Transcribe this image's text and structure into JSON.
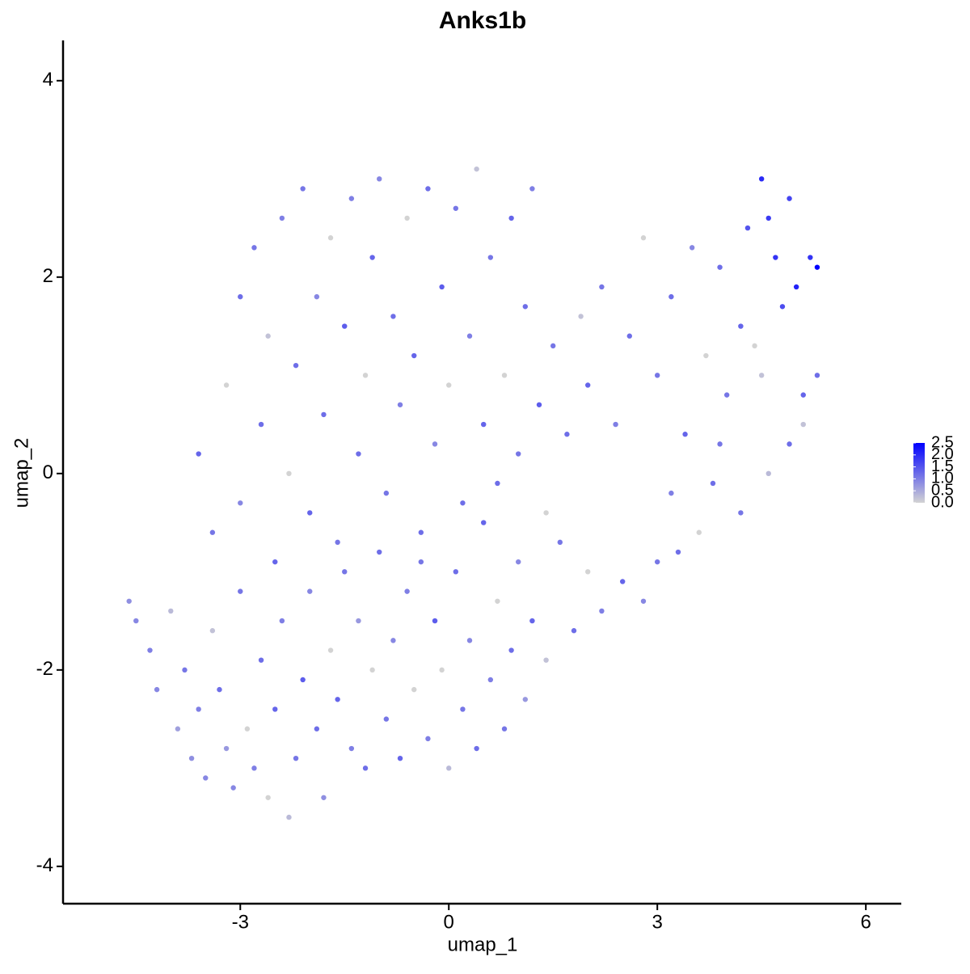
{
  "chart_data": {
    "type": "scatter",
    "title": "Anks1b",
    "x_label": "umap_1",
    "y_label": "umap_2",
    "xlim": [
      -5.55,
      6.51
    ],
    "ylim": [
      -4.38,
      4.41
    ],
    "xticks": [
      -3,
      0,
      3,
      6
    ],
    "yticks": [
      -4,
      -2,
      0,
      2,
      4
    ],
    "color_low": "#d3d3d3",
    "color_high": "#0000ff",
    "color_lim": [
      0,
      2.5
    ],
    "color_ticks": [
      {
        "value": 0,
        "label": "0.0"
      },
      0.5,
      {
        "value": 1,
        "label": "1.0"
      },
      1.5,
      {
        "value": 2,
        "label": "2.0"
      },
      2.5
    ],
    "legend": "right",
    "x": [
      -4.6,
      -4.5,
      -4.3,
      -4.2,
      -4.0,
      -3.9,
      -3.8,
      -3.7,
      -3.6,
      -3.5,
      -3.4,
      -3.3,
      -3.2,
      -3.1,
      -3.0,
      -2.9,
      -2.8,
      -2.7,
      -2.6,
      -2.5,
      -2.4,
      -2.3,
      -2.2,
      -2.1,
      -2.0,
      -1.9,
      -1.8,
      -1.7,
      -1.6,
      -1.5,
      -1.4,
      -1.3,
      -1.2,
      -1.1,
      -1.0,
      -0.9,
      -0.8,
      -0.7,
      -0.6,
      -0.5,
      -0.4,
      -0.3,
      -0.2,
      -0.1,
      0.0,
      0.1,
      0.2,
      0.3,
      0.4,
      0.5,
      0.6,
      0.7,
      0.8,
      0.9,
      1.0,
      1.1,
      1.2,
      1.4,
      1.6,
      1.8,
      2.0,
      2.2,
      2.5,
      2.8,
      3.0,
      3.3,
      3.6,
      3.2,
      3.8,
      4.2,
      4.6,
      4.9,
      -3.6,
      -3.4,
      -3.2,
      -3.0,
      -3.0,
      -2.8,
      -2.7,
      -2.6,
      -2.5,
      -2.4,
      -2.3,
      -2.2,
      -2.1,
      -2.0,
      -1.9,
      -1.8,
      -1.7,
      -1.6,
      -1.5,
      -1.4,
      -1.3,
      -1.2,
      -1.1,
      -1.0,
      -0.9,
      -0.8,
      -0.7,
      -0.6,
      -0.5,
      -0.4,
      -0.3,
      -0.2,
      -0.1,
      0.0,
      0.1,
      0.2,
      0.3,
      0.4,
      0.5,
      0.6,
      0.7,
      0.8,
      0.9,
      1.0,
      1.1,
      1.2,
      1.3,
      1.4,
      1.5,
      1.7,
      1.9,
      2.0,
      2.2,
      2.4,
      2.6,
      2.8,
      3.0,
      3.2,
      3.4,
      3.5,
      3.7,
      3.9,
      4.0,
      4.2,
      4.3,
      4.5,
      4.5,
      4.6,
      4.7,
      4.8,
      4.9,
      5.0,
      5.1,
      5.2,
      5.3,
      5.3,
      5.1,
      4.4,
      3.9
    ],
    "y": [
      -1.3,
      -1.5,
      -1.8,
      -2.2,
      -1.4,
      -2.6,
      -2.0,
      -2.9,
      -2.4,
      -3.1,
      -1.6,
      -2.2,
      -2.8,
      -3.2,
      -1.2,
      -2.6,
      -3.0,
      -1.9,
      -3.3,
      -2.4,
      -1.5,
      -3.5,
      -2.9,
      -2.1,
      -1.2,
      -2.6,
      -3.3,
      -1.8,
      -2.3,
      -1.0,
      -2.8,
      -1.5,
      -3.0,
      -2.0,
      -0.8,
      -2.5,
      -1.7,
      -2.9,
      -1.2,
      -2.2,
      -0.6,
      -2.7,
      -1.5,
      -2.0,
      -3.0,
      -1.0,
      -2.4,
      -1.7,
      -2.8,
      -0.5,
      -2.1,
      -1.3,
      -2.6,
      -1.8,
      -0.9,
      -2.3,
      -1.5,
      -1.9,
      -0.7,
      -1.6,
      -1.0,
      -1.4,
      -1.1,
      -1.3,
      -0.9,
      -0.8,
      -0.6,
      -0.2,
      -0.1,
      -0.4,
      0.0,
      0.3,
      0.2,
      -0.6,
      0.9,
      1.8,
      -0.3,
      2.3,
      0.5,
      1.4,
      -0.9,
      2.6,
      0.0,
      1.1,
      2.9,
      -0.4,
      1.8,
      0.6,
      2.4,
      -0.7,
      1.5,
      2.8,
      0.2,
      1.0,
      2.2,
      3.0,
      -0.2,
      1.6,
      0.7,
      2.6,
      1.2,
      -0.9,
      2.9,
      0.3,
      1.9,
      0.9,
      2.7,
      -0.3,
      1.4,
      3.1,
      0.5,
      2.2,
      -0.1,
      1.0,
      2.6,
      0.2,
      1.7,
      2.9,
      0.7,
      -0.4,
      1.3,
      0.4,
      1.6,
      0.9,
      1.9,
      0.5,
      1.4,
      2.4,
      1.0,
      1.8,
      0.4,
      2.3,
      1.2,
      2.1,
      0.8,
      1.5,
      2.5,
      3.0,
      1.0,
      2.6,
      2.2,
      1.7,
      2.8,
      1.9,
      0.8,
      2.2,
      2.1,
      1.0,
      0.5,
      1.3,
      0.3
    ],
    "values": [
      0.8,
      0.9,
      1.0,
      0.9,
      0.3,
      0.6,
      1.1,
      0.8,
      1.0,
      0.9,
      0.2,
      1.2,
      0.7,
      0.9,
      1.1,
      0.0,
      1.0,
      1.2,
      0.0,
      1.3,
      1.0,
      0.3,
      1.1,
      1.4,
      0.9,
      1.2,
      0.8,
      0.0,
      1.3,
      1.1,
      1.0,
      0.7,
      1.2,
      0.0,
      1.2,
      1.1,
      0.9,
      1.3,
      1.0,
      0.0,
      1.2,
      1.0,
      1.4,
      0.0,
      0.3,
      1.2,
      1.1,
      0.9,
      1.2,
      1.3,
      1.0,
      0.0,
      1.1,
      1.2,
      0.9,
      0.7,
      1.3,
      0.2,
      1.1,
      1.2,
      0.0,
      1.0,
      1.3,
      0.9,
      1.1,
      1.2,
      0.0,
      1.0,
      1.2,
      1.1,
      0.3,
      1.2,
      1.3,
      1.1,
      0.0,
      1.2,
      0.9,
      1.1,
      1.2,
      0.2,
      1.3,
      1.0,
      0.0,
      1.2,
      1.1,
      1.3,
      0.9,
      1.2,
      0.0,
      1.1,
      1.4,
      1.0,
      1.2,
      0.0,
      1.3,
      0.9,
      1.1,
      1.2,
      1.0,
      0.0,
      1.3,
      1.1,
      1.2,
      0.9,
      1.4,
      0.0,
      1.1,
      1.2,
      1.0,
      0.2,
      1.3,
      1.1,
      1.2,
      0.0,
      1.3,
      1.1,
      1.2,
      1.0,
      1.4,
      0.0,
      1.1,
      1.2,
      0.2,
      1.3,
      1.1,
      1.0,
      1.2,
      0.0,
      1.1,
      1.2,
      1.3,
      0.9,
      0.0,
      1.2,
      1.1,
      1.3,
      1.5,
      2.0,
      0.2,
      1.8,
      1.9,
      1.6,
      1.7,
      2.1,
      1.3,
      1.9,
      2.5,
      1.2,
      0.2,
      0.0,
      1.1
    ]
  }
}
